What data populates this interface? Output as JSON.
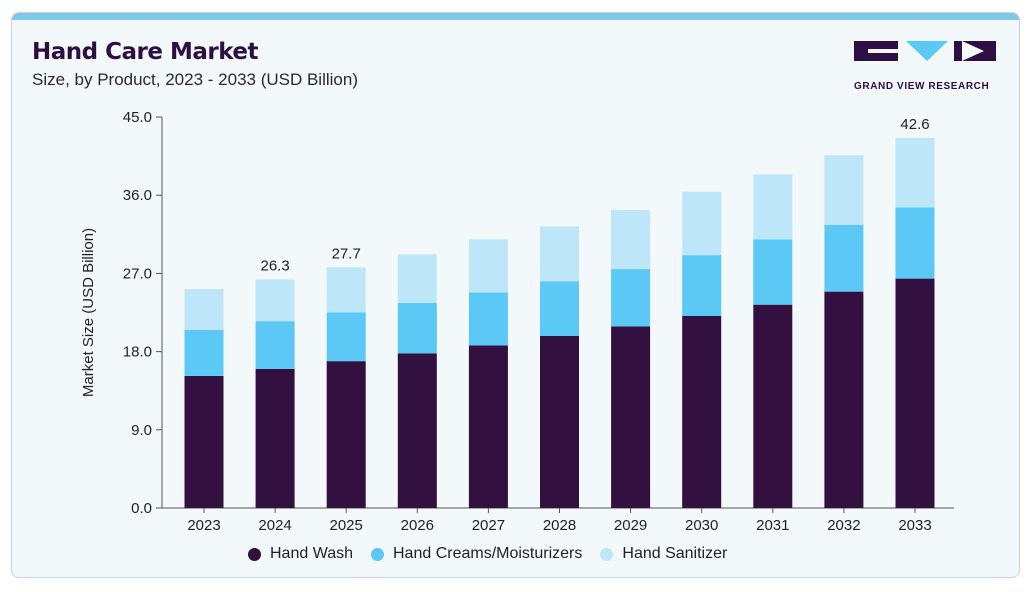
{
  "header": {
    "title": "Hand Care Market",
    "subtitle": "Size, by Product, 2023 - 2033 (USD Billion)"
  },
  "logo": {
    "text": "GRAND VIEW RESEARCH",
    "color": "#2d0f45",
    "accent": "#5bc8f5"
  },
  "chart_data": {
    "type": "bar",
    "stacked": true,
    "categories": [
      "2023",
      "2024",
      "2025",
      "2026",
      "2027",
      "2028",
      "2029",
      "2030",
      "2031",
      "2032",
      "2033"
    ],
    "series": [
      {
        "name": "Hand Wash",
        "color": "#32103f",
        "values": [
          15.2,
          16.0,
          16.9,
          17.8,
          18.7,
          19.8,
          20.9,
          22.1,
          23.4,
          24.9,
          26.4
        ]
      },
      {
        "name": "Hand Creams/Moisturizers",
        "color": "#5bc8f5",
        "values": [
          5.3,
          5.5,
          5.6,
          5.8,
          6.1,
          6.3,
          6.6,
          7.0,
          7.5,
          7.7,
          8.2
        ]
      },
      {
        "name": "Hand Sanitizer",
        "color": "#bde6f8",
        "values": [
          4.7,
          4.8,
          5.2,
          5.6,
          6.1,
          6.3,
          6.8,
          7.3,
          7.5,
          8.0,
          8.0
        ]
      }
    ],
    "totals_labels": [
      {
        "index": 1,
        "text": "26.3"
      },
      {
        "index": 2,
        "text": "27.7"
      },
      {
        "index": 10,
        "text": "42.6"
      }
    ],
    "ylabel": "Market Size (USD Billion)",
    "xlabel": "",
    "ylim": [
      0,
      45
    ],
    "yticks": [
      "0.0",
      "9.0",
      "18.0",
      "27.0",
      "36.0",
      "45.0"
    ],
    "grid": false,
    "legend_position": "bottom"
  }
}
